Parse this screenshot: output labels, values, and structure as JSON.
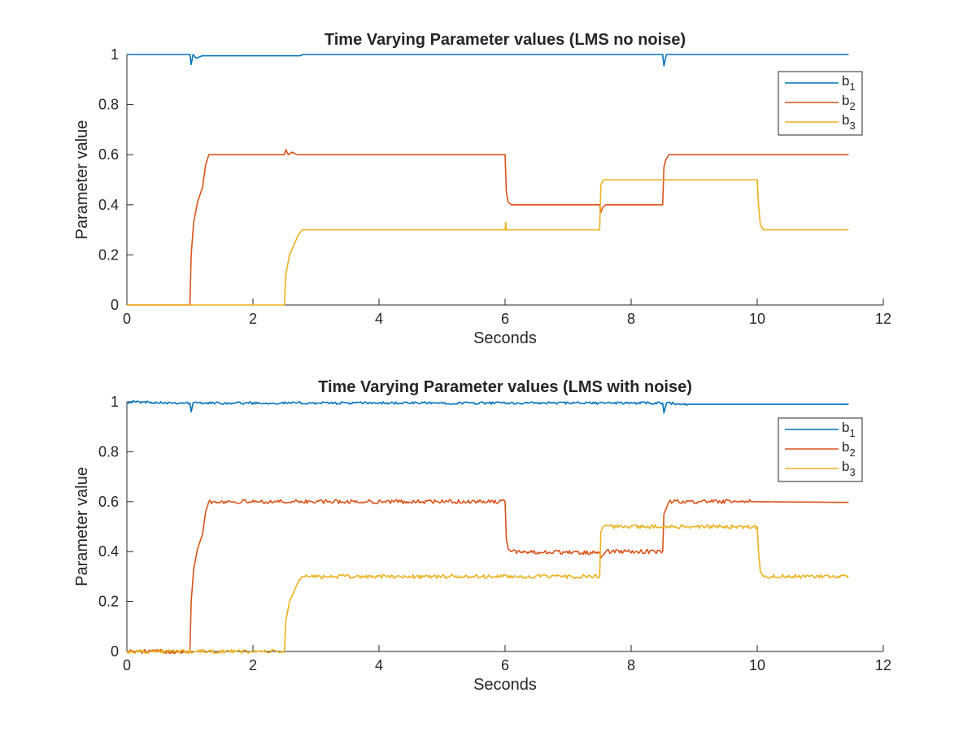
{
  "colors": {
    "b1": "#0072BD",
    "b2": "#D95319",
    "b3": "#EDB120",
    "axis": "#262626"
  },
  "chart_data": [
    {
      "type": "line",
      "title": "Time Varying Parameter values (LMS no noise)",
      "xlabel": "Seconds",
      "ylabel": "Parameter value",
      "xlim": [
        0,
        12
      ],
      "ylim": [
        0,
        1
      ],
      "xticks": [
        "0",
        "2",
        "4",
        "6",
        "8",
        "10",
        "12"
      ],
      "yticks": [
        "0",
        "0.2",
        "0.4",
        "0.6",
        "0.8",
        "1"
      ],
      "grid": false,
      "legend": {
        "placement": "top-right",
        "entries": [
          "b_1",
          "b_2",
          "b_3"
        ]
      },
      "series": [
        {
          "name": "b_1",
          "color": "#0072BD",
          "noise": 0,
          "points": [
            [
              0,
              1
            ],
            [
              1,
              1
            ],
            [
              1.02,
              0.96
            ],
            [
              1.05,
              1
            ],
            [
              1.1,
              0.985
            ],
            [
              1.2,
              0.995
            ],
            [
              2.6,
              0.995
            ],
            [
              2.75,
              0.995
            ],
            [
              2.8,
              1
            ],
            [
              7.5,
              1
            ],
            [
              8.5,
              1
            ],
            [
              8.52,
              0.955
            ],
            [
              8.56,
              1
            ],
            [
              11.45,
              1
            ]
          ]
        },
        {
          "name": "b_2",
          "color": "#D95319",
          "noise": 0,
          "points": [
            [
              0,
              0
            ],
            [
              1,
              0
            ],
            [
              1.02,
              0.2
            ],
            [
              1.06,
              0.33
            ],
            [
              1.12,
              0.41
            ],
            [
              1.2,
              0.47
            ],
            [
              1.25,
              0.56
            ],
            [
              1.3,
              0.6
            ],
            [
              2.5,
              0.6
            ],
            [
              2.52,
              0.62
            ],
            [
              2.56,
              0.6
            ],
            [
              2.62,
              0.61
            ],
            [
              2.7,
              0.6
            ],
            [
              6,
              0.6
            ],
            [
              6.02,
              0.45
            ],
            [
              6.05,
              0.41
            ],
            [
              6.1,
              0.4
            ],
            [
              7.5,
              0.4
            ],
            [
              7.52,
              0.37
            ],
            [
              7.55,
              0.39
            ],
            [
              7.6,
              0.4
            ],
            [
              8.5,
              0.4
            ],
            [
              8.52,
              0.55
            ],
            [
              8.55,
              0.58
            ],
            [
              8.6,
              0.6
            ],
            [
              11.45,
              0.6
            ]
          ]
        },
        {
          "name": "b_3",
          "color": "#EDB120",
          "noise": 0,
          "points": [
            [
              0,
              0
            ],
            [
              2.5,
              0
            ],
            [
              2.52,
              0.12
            ],
            [
              2.58,
              0.2
            ],
            [
              2.65,
              0.24
            ],
            [
              2.72,
              0.28
            ],
            [
              2.78,
              0.3
            ],
            [
              6,
              0.3
            ],
            [
              6.01,
              0.33
            ],
            [
              6.02,
              0.3
            ],
            [
              7.5,
              0.3
            ],
            [
              7.52,
              0.48
            ],
            [
              7.56,
              0.5
            ],
            [
              10,
              0.5
            ],
            [
              10.02,
              0.4
            ],
            [
              10.05,
              0.32
            ],
            [
              10.1,
              0.3
            ],
            [
              11.45,
              0.3
            ]
          ]
        }
      ]
    },
    {
      "type": "line",
      "title": "Time Varying Parameter values (LMS with noise)",
      "xlabel": "Seconds",
      "ylabel": "Parameter value",
      "xlim": [
        0,
        12
      ],
      "ylim": [
        0,
        1
      ],
      "xticks": [
        "0",
        "2",
        "4",
        "6",
        "8",
        "10",
        "12"
      ],
      "yticks": [
        "0",
        "0.2",
        "0.4",
        "0.6",
        "0.8",
        "1"
      ],
      "grid": false,
      "legend": {
        "placement": "top-right",
        "entries": [
          "b_1",
          "b_2",
          "b_3"
        ]
      },
      "series": [
        {
          "name": "b_1",
          "color": "#0072BD",
          "noise": 0.005,
          "noise_until": 8.95,
          "points": [
            [
              0,
              1
            ],
            [
              1,
              0.995
            ],
            [
              1.02,
              0.96
            ],
            [
              1.05,
              0.995
            ],
            [
              8.5,
              0.995
            ],
            [
              8.52,
              0.955
            ],
            [
              8.56,
              0.995
            ],
            [
              8.9,
              0.99
            ],
            [
              8.95,
              0.99
            ],
            [
              11.45,
              0.99
            ]
          ]
        },
        {
          "name": "b_2",
          "color": "#D95319",
          "noise": 0.008,
          "noise_until": 9.9,
          "points": [
            [
              0,
              0
            ],
            [
              1,
              0
            ],
            [
              1.02,
              0.2
            ],
            [
              1.06,
              0.33
            ],
            [
              1.12,
              0.41
            ],
            [
              1.2,
              0.47
            ],
            [
              1.25,
              0.56
            ],
            [
              1.3,
              0.6
            ],
            [
              6,
              0.6
            ],
            [
              6.02,
              0.45
            ],
            [
              6.05,
              0.41
            ],
            [
              6.1,
              0.4
            ],
            [
              7.5,
              0.395
            ],
            [
              7.52,
              0.375
            ],
            [
              7.6,
              0.4
            ],
            [
              8.5,
              0.4
            ],
            [
              8.52,
              0.55
            ],
            [
              8.6,
              0.6
            ],
            [
              9.9,
              0.6
            ],
            [
              11.45,
              0.597
            ]
          ]
        },
        {
          "name": "b_3",
          "color": "#EDB120",
          "noise": 0.008,
          "noise_until": 11.45,
          "points": [
            [
              0,
              0
            ],
            [
              2.5,
              0
            ],
            [
              2.52,
              0.12
            ],
            [
              2.58,
              0.2
            ],
            [
              2.65,
              0.24
            ],
            [
              2.72,
              0.28
            ],
            [
              2.78,
              0.3
            ],
            [
              7.5,
              0.3
            ],
            [
              7.52,
              0.48
            ],
            [
              7.56,
              0.5
            ],
            [
              10,
              0.5
            ],
            [
              10.02,
              0.4
            ],
            [
              10.05,
              0.32
            ],
            [
              10.1,
              0.3
            ],
            [
              11.45,
              0.3
            ]
          ]
        }
      ]
    }
  ]
}
